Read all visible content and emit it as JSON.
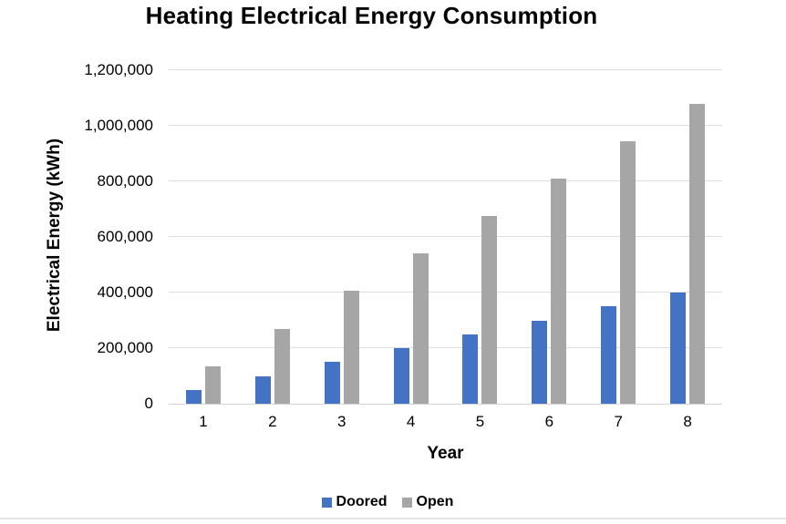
{
  "page": {
    "background": "#ffffff",
    "divider_color": "#e4e4e4"
  },
  "chart_data": {
    "type": "bar",
    "title": "Heating Electrical Energy Consumption",
    "xlabel": "Year",
    "ylabel": "Electrical Energy (kWh)",
    "categories": [
      "1",
      "2",
      "3",
      "4",
      "5",
      "6",
      "7",
      "8"
    ],
    "series": [
      {
        "name": "Doored",
        "color": "#4472C4",
        "values": [
          50000,
          100000,
          150000,
          200000,
          250000,
          300000,
          350000,
          400000
        ]
      },
      {
        "name": "Open",
        "color": "#A6A6A6",
        "values": [
          135000,
          270000,
          405000,
          540000,
          675000,
          810000,
          945000,
          1080000
        ]
      }
    ],
    "ylim": [
      0,
      1200000
    ],
    "ytick_step": 200000,
    "ytick_labels": [
      "0",
      "200,000",
      "400,000",
      "600,000",
      "800,000",
      "1,000,000",
      "1,200,000"
    ],
    "grid": true,
    "gridline_color": "#dedede",
    "axis_line_color": "#d2d2d2",
    "legend_position": "bottom-center"
  }
}
